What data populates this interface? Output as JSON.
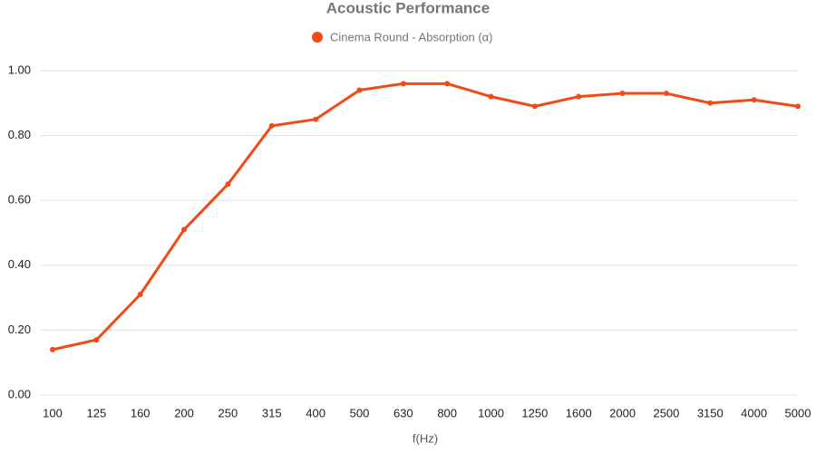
{
  "chart_data": {
    "type": "line",
    "title": "Acoustic Performance",
    "x_label": "f(Hz)",
    "categories": [
      "100",
      "125",
      "160",
      "200",
      "250",
      "315",
      "400",
      "500",
      "630",
      "800",
      "1000",
      "1250",
      "1600",
      "2000",
      "2500",
      "3150",
      "4000",
      "5000"
    ],
    "series": [
      {
        "name": "Cinema Round - Absorption (α)",
        "color": "#f04a16",
        "values": [
          0.14,
          0.17,
          0.31,
          0.51,
          0.65,
          0.83,
          0.85,
          0.94,
          0.96,
          0.96,
          0.92,
          0.89,
          0.92,
          0.93,
          0.93,
          0.9,
          0.91,
          0.89
        ]
      }
    ],
    "ylim": [
      0,
      1
    ],
    "yticks": [
      {
        "value": 0,
        "label": "0.00"
      },
      {
        "value": 0.2,
        "label": "0.20"
      },
      {
        "value": 0.4,
        "label": "0.40"
      },
      {
        "value": 0.6,
        "label": "0.60"
      },
      {
        "value": 0.8,
        "label": "0.80"
      },
      {
        "value": 1,
        "label": "1.00"
      }
    ],
    "grid": true
  }
}
